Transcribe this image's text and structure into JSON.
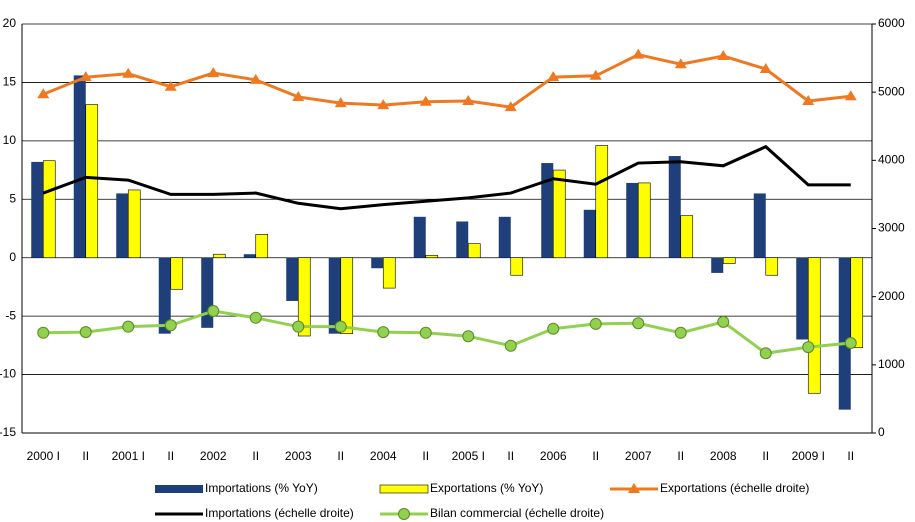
{
  "chart_data": {
    "type": "bar",
    "categories": [
      "2000 I",
      "II",
      "2001 I",
      "II",
      "2002",
      "II",
      "2003",
      "II",
      "2004",
      "II",
      "2005 I",
      "II",
      "2006",
      "II",
      "2007",
      "II",
      "2008",
      "II",
      "2009 I",
      "II"
    ],
    "ylim": [
      -15,
      20
    ],
    "yticks": [
      -15,
      -10,
      -5,
      0,
      5,
      10,
      15,
      20
    ],
    "y2lim": [
      0,
      6000
    ],
    "y2ticks": [
      0,
      1000,
      2000,
      3000,
      4000,
      5000,
      6000
    ],
    "grid": true,
    "legend": "bottom",
    "series": [
      {
        "name": "Importations (% YoY)",
        "type": "bar",
        "color": "#1f3f7a",
        "values": [
          8.2,
          15.6,
          5.5,
          -6.5,
          -6.0,
          0.3,
          -3.7,
          -6.5,
          -0.9,
          3.5,
          3.1,
          3.5,
          8.1,
          4.1,
          6.4,
          8.7,
          -1.3,
          5.5,
          -7.0,
          -13.0
        ]
      },
      {
        "name": "Exportations (% YoY)",
        "type": "bar",
        "color": "#ffff00",
        "values": [
          8.3,
          13.1,
          5.8,
          -2.7,
          0.3,
          2.0,
          -6.7,
          -6.5,
          -2.6,
          0.2,
          1.2,
          -1.5,
          7.5,
          9.6,
          6.4,
          3.6,
          -0.5,
          -1.5,
          -11.6,
          -7.7
        ]
      },
      {
        "name": "Exportations (échelle droite)",
        "type": "line",
        "axis": "y2",
        "marker": "triangle",
        "color": "#f07820",
        "values": [
          4970,
          5220,
          5270,
          5080,
          5280,
          5180,
          4930,
          4840,
          4810,
          4860,
          4870,
          4780,
          5220,
          5240,
          5550,
          5410,
          5530,
          5340,
          4870,
          4940
        ]
      },
      {
        "name": "Importations (échelle droite)",
        "type": "line",
        "axis": "y2",
        "marker": "none",
        "color": "#000000",
        "values": [
          3520,
          3750,
          3710,
          3500,
          3500,
          3520,
          3370,
          3290,
          3350,
          3400,
          3450,
          3520,
          3730,
          3650,
          3960,
          3980,
          3920,
          4200,
          3640,
          3640
        ]
      },
      {
        "name": "Bilan commercial (échelle droite)",
        "type": "line",
        "axis": "y2",
        "marker": "circle",
        "color": "#92d050",
        "values": [
          1470,
          1480,
          1560,
          1580,
          1790,
          1690,
          1560,
          1560,
          1480,
          1470,
          1420,
          1280,
          1530,
          1600,
          1610,
          1470,
          1630,
          1170,
          1260,
          1320
        ]
      }
    ]
  }
}
